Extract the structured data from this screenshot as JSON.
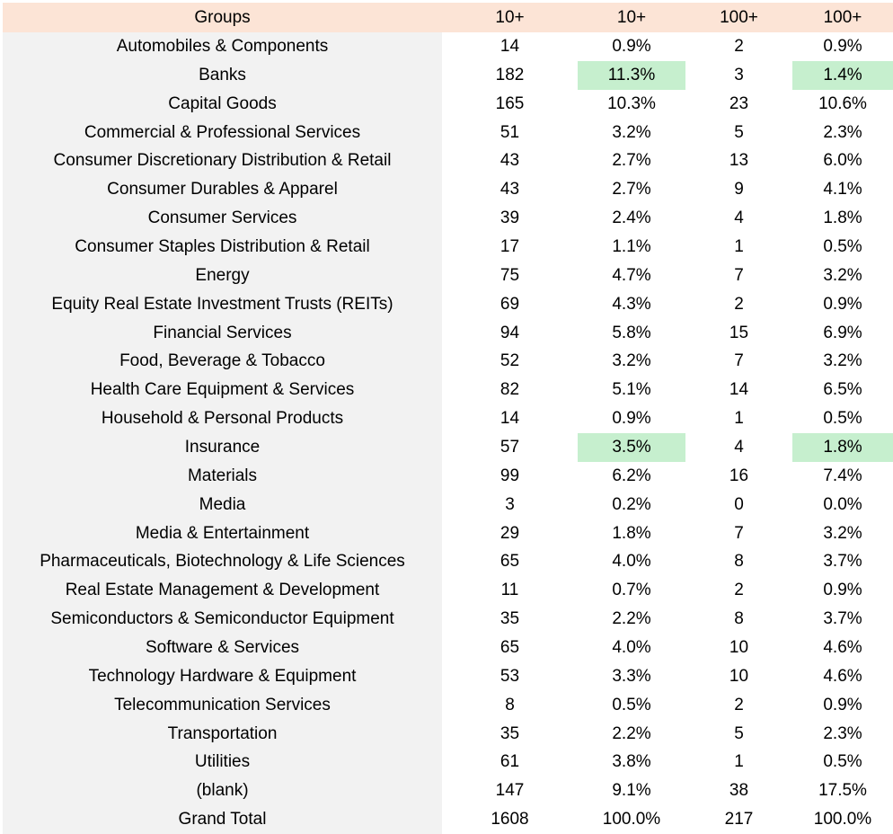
{
  "colors": {
    "page_bg": "#FFFFFF",
    "header_bg": "#FCE4D6",
    "group_col_bg": "#F2F2F2",
    "highlight_bg": "#C6EFCE",
    "text": "#000000"
  },
  "chart_data": {
    "type": "table",
    "columns": [
      "Groups",
      "10+",
      "10+",
      "100+",
      "100+"
    ],
    "rows": [
      [
        "Automobiles & Components",
        "14",
        "0.9%",
        "2",
        "0.9%"
      ],
      [
        "Banks",
        "182",
        "11.3%",
        "3",
        "1.4%"
      ],
      [
        "Capital Goods",
        "165",
        "10.3%",
        "23",
        "10.6%"
      ],
      [
        "Commercial & Professional Services",
        "51",
        "3.2%",
        "5",
        "2.3%"
      ],
      [
        "Consumer Discretionary Distribution & Retail",
        "43",
        "2.7%",
        "13",
        "6.0%"
      ],
      [
        "Consumer Durables & Apparel",
        "43",
        "2.7%",
        "9",
        "4.1%"
      ],
      [
        "Consumer Services",
        "39",
        "2.4%",
        "4",
        "1.8%"
      ],
      [
        "Consumer Staples Distribution & Retail",
        "17",
        "1.1%",
        "1",
        "0.5%"
      ],
      [
        "Energy",
        "75",
        "4.7%",
        "7",
        "3.2%"
      ],
      [
        "Equity Real Estate Investment Trusts (REITs)",
        "69",
        "4.3%",
        "2",
        "0.9%"
      ],
      [
        "Financial Services",
        "94",
        "5.8%",
        "15",
        "6.9%"
      ],
      [
        "Food, Beverage & Tobacco",
        "52",
        "3.2%",
        "7",
        "3.2%"
      ],
      [
        "Health Care Equipment & Services",
        "82",
        "5.1%",
        "14",
        "6.5%"
      ],
      [
        "Household & Personal Products",
        "14",
        "0.9%",
        "1",
        "0.5%"
      ],
      [
        "Insurance",
        "57",
        "3.5%",
        "4",
        "1.8%"
      ],
      [
        "Materials",
        "99",
        "6.2%",
        "16",
        "7.4%"
      ],
      [
        "Media",
        "3",
        "0.2%",
        "0",
        "0.0%"
      ],
      [
        "Media & Entertainment",
        "29",
        "1.8%",
        "7",
        "3.2%"
      ],
      [
        "Pharmaceuticals, Biotechnology & Life Sciences",
        "65",
        "4.0%",
        "8",
        "3.7%"
      ],
      [
        "Real Estate Management & Development",
        "11",
        "0.7%",
        "2",
        "0.9%"
      ],
      [
        "Semiconductors & Semiconductor Equipment",
        "35",
        "2.2%",
        "8",
        "3.7%"
      ],
      [
        "Software & Services",
        "65",
        "4.0%",
        "10",
        "4.6%"
      ],
      [
        "Technology Hardware & Equipment",
        "53",
        "3.3%",
        "10",
        "4.6%"
      ],
      [
        "Telecommunication Services",
        "8",
        "0.5%",
        "2",
        "0.9%"
      ],
      [
        "Transportation",
        "35",
        "2.2%",
        "5",
        "2.3%"
      ],
      [
        "Utilities",
        "61",
        "3.8%",
        "1",
        "0.5%"
      ],
      [
        "(blank)",
        "147",
        "9.1%",
        "38",
        "17.5%"
      ],
      [
        "Grand Total",
        "1608",
        "100.0%",
        "217",
        "100.0%"
      ]
    ],
    "highlighted_cells": [
      {
        "row": 1,
        "col": 2
      },
      {
        "row": 1,
        "col": 4
      },
      {
        "row": 14,
        "col": 2
      },
      {
        "row": 14,
        "col": 4
      }
    ],
    "layout": {
      "grid": false,
      "legend": "none"
    }
  }
}
